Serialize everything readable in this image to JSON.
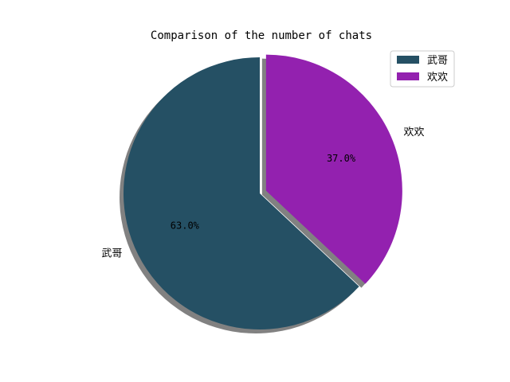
{
  "chart_data": {
    "type": "pie",
    "title": "Comparison of the number of chats",
    "slices": [
      {
        "label": "武哥",
        "value": 63.0,
        "pct_label": "63.0%",
        "color": "#255064"
      },
      {
        "label": "欢欢",
        "value": 37.0,
        "pct_label": "37.0%",
        "color": "#9321AF"
      }
    ],
    "start_angle_deg": 90,
    "direction": "counterclockwise",
    "explode": [
      0,
      0.05
    ],
    "shadow": true,
    "legend": {
      "placement": "upper-right",
      "entries": [
        "武哥",
        "欢欢"
      ]
    }
  }
}
